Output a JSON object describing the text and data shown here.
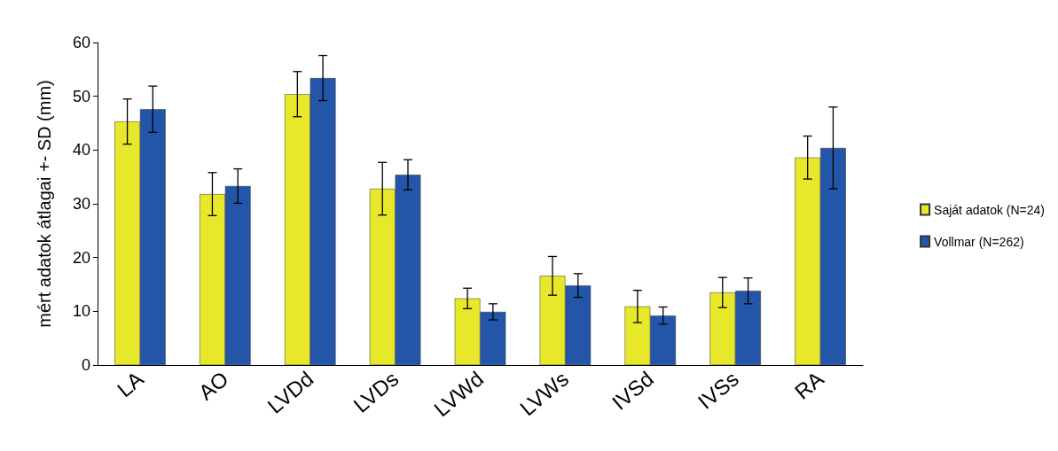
{
  "chart_data": {
    "type": "bar",
    "ylabel": "mért adatok átlagai +- SD (mm)",
    "categories": [
      "LA",
      "AO",
      "LVDd",
      "LVDs",
      "LVWd",
      "LVWs",
      "IVSd",
      "IVSs",
      "RA"
    ],
    "series": [
      {
        "name": "Saját adatok (N=24)",
        "color": "#e8e82a",
        "values": [
          45.3,
          31.8,
          50.4,
          32.8,
          12.4,
          16.6,
          10.9,
          13.5,
          38.6
        ],
        "errors": [
          4.2,
          4,
          4.2,
          4.9,
          1.9,
          3.6,
          3,
          2.8,
          4
        ]
      },
      {
        "name": "Vollmar (N=262)",
        "color": "#2356a8",
        "values": [
          47.6,
          33.3,
          53.4,
          35.4,
          9.9,
          14.8,
          9.2,
          13.8,
          40.4
        ],
        "errors": [
          4.3,
          3.2,
          4.2,
          2.8,
          1.5,
          2.2,
          1.6,
          2.4,
          7.6
        ]
      }
    ],
    "ylim": [
      0,
      60
    ],
    "yticks": [
      0,
      10,
      20,
      30,
      40,
      50,
      60
    ],
    "grid": false,
    "legend": "right"
  }
}
